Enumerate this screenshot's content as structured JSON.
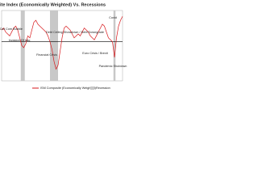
{
  "chart_data": {
    "type": "line",
    "title": "ite Index (Economically Weighted) Vs. Recessions",
    "series": [
      {
        "name": "ISM Composite (Economically Weighted)",
        "color": "#d7191c",
        "values": [
          56,
          57,
          55,
          54,
          53,
          55,
          57,
          58,
          56,
          52,
          48,
          47,
          49,
          53,
          52,
          56,
          60,
          61,
          59,
          58,
          57,
          56,
          55,
          53,
          50,
          46,
          40,
          36,
          38,
          45,
          52,
          57,
          58,
          57,
          56,
          54,
          52,
          53,
          54,
          53,
          55,
          57,
          56,
          55,
          53,
          52,
          51,
          53,
          55,
          57,
          59,
          58,
          55,
          52,
          51,
          50,
          42,
          52,
          58,
          61,
          63
        ]
      }
    ],
    "recession_name": "Recession",
    "recession_color": "#c8c8c8",
    "recessions": [
      [
        9.5,
        11.5
      ],
      [
        24,
        28
      ],
      [
        55.5,
        56.5
      ]
    ],
    "hline": 50,
    "ylim": [
      30,
      66
    ],
    "annotations": [
      "Dot Com Bubble",
      "Invasion Of Iraq",
      "Financial Crisis",
      "Debt Ceiling Showdown / Debt Downgrade",
      "Euro Crisis / Brexit",
      "Covid",
      "Pandemic Shutdown"
    ]
  }
}
